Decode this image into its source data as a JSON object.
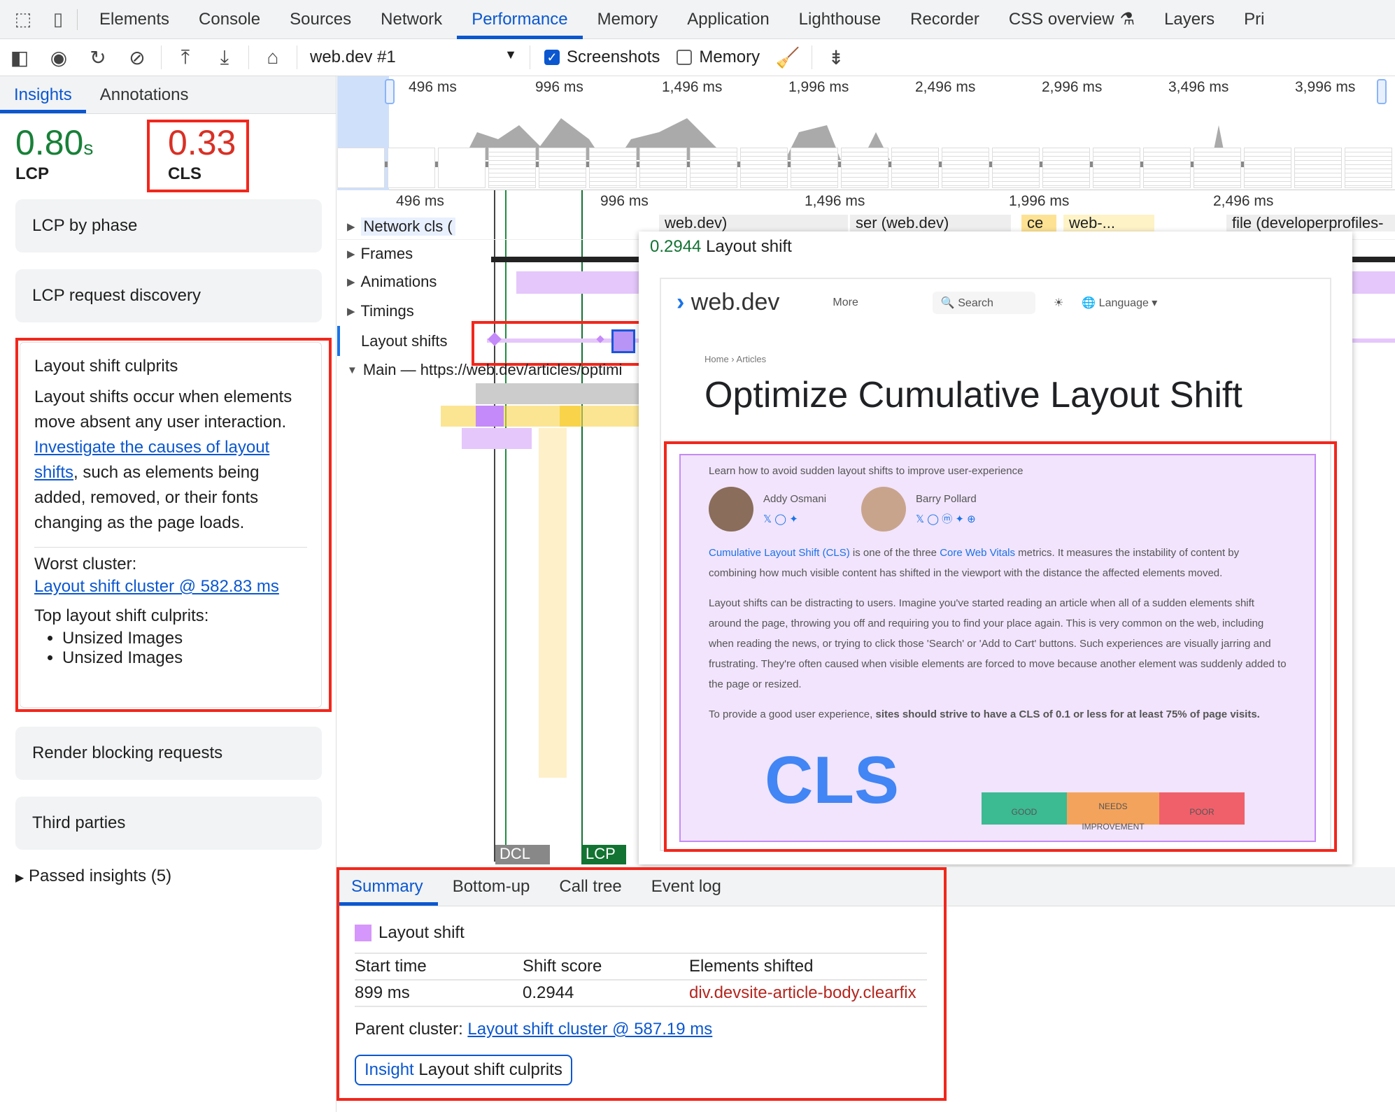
{
  "tabs": [
    "Elements",
    "Console",
    "Sources",
    "Network",
    "Performance",
    "Memory",
    "Application",
    "Lighthouse",
    "Recorder",
    "CSS overview",
    "Layers",
    "Pri"
  ],
  "active_tab": "Performance",
  "toolbar": {
    "recording": "web.dev #1",
    "screenshots_label": "Screenshots",
    "screenshots_checked": true,
    "memory_label": "Memory",
    "memory_checked": false
  },
  "sidebar": {
    "tabs": [
      "Insights",
      "Annotations"
    ],
    "lcp": {
      "value": "0.80",
      "unit": "s",
      "label": "LCP",
      "color": "#188038"
    },
    "cls": {
      "value": "0.33",
      "label": "CLS",
      "color": "#d93025"
    },
    "cards": [
      "LCP by phase",
      "LCP request discovery",
      "Render blocking requests",
      "Third parties"
    ],
    "culprits": {
      "title": "Layout shift culprits",
      "text1": "Layout shifts occur when elements move absent any user interaction. ",
      "link": "Investigate the causes of layout shifts",
      "text2": ", such as elements being added, removed, or their fonts changing as the page loads.",
      "worst_label": "Worst cluster:",
      "worst_link": "Layout shift cluster @ 582.83 ms",
      "top_label": "Top layout shift culprits:",
      "items": [
        "Unsized Images",
        "Unsized Images"
      ]
    },
    "passed": "Passed insights (5)"
  },
  "overview": {
    "ticks": [
      "496 ms",
      "996 ms",
      "1,496 ms",
      "1,996 ms",
      "2,496 ms",
      "2,996 ms",
      "3,496 ms",
      "3,996 ms"
    ]
  },
  "timeline": {
    "ticks": [
      "496 ms",
      "996 ms",
      "1,496 ms",
      "1,996 ms",
      "2,496 ms"
    ],
    "tracks": [
      "Network cls (",
      "Frames",
      "Animations",
      "Timings",
      "Layout shifts",
      "Main — https://web.dev/articles/optimi"
    ],
    "network_labels": [
      "web.dev)",
      "ser (web.dev)",
      "ce",
      "web-...",
      "file (developerprofiles-"
    ],
    "markers": [
      "DCL",
      "LCP"
    ]
  },
  "tooltip": {
    "score": "0.2944",
    "title": "Layout shift",
    "site": {
      "logo": "web.dev",
      "more": "More",
      "search": "Search",
      "language": "Language",
      "breadcrumb": [
        "Home",
        "Articles"
      ],
      "heading": "Optimize Cumulative Layout Shift",
      "subtitle": "Learn how to avoid sudden layout shifts to improve user-experience",
      "authors": [
        "Addy Osmani",
        "Barry Pollard"
      ],
      "p1_link1": "Cumulative Layout Shift (CLS)",
      "p1_a": " is one of the three ",
      "p1_link2": "Core Web Vitals",
      "p1_b": " metrics. It measures the instability of content by combining how much visible content has shifted in the viewport with the distance the affected elements moved.",
      "p2": "Layout shifts can be distracting to users. Imagine you've started reading an article when all of a sudden elements shift around the page, throwing you off and requiring you to find your place again. This is very common on the web, including when reading the news, or trying to click those 'Search' or 'Add to Cart' buttons. Such experiences are visually jarring and frustrating. They're often caused when visible elements are forced to move because another element was suddenly added to the page or resized.",
      "p3_a": "To provide a good user experience, ",
      "p3_b": "sites should strive to have a CLS of 0.1 or less for at least 75% of page visits.",
      "cls_big": "CLS",
      "scale": [
        "GOOD",
        "NEEDS IMPROVEMENT",
        "POOR"
      ]
    }
  },
  "bottom": {
    "tabs": [
      "Summary",
      "Bottom-up",
      "Call tree",
      "Event log"
    ],
    "event": "Layout shift",
    "headers": [
      "Start time",
      "Shift score",
      "Elements shifted"
    ],
    "row": [
      "899 ms",
      "0.2944",
      "div.devsite-article-body.clearfix"
    ],
    "parent_label": "Parent cluster: ",
    "parent_link": "Layout shift cluster @ 587.19 ms",
    "insight_label": "Insight",
    "insight_name": "Layout shift culprits"
  }
}
